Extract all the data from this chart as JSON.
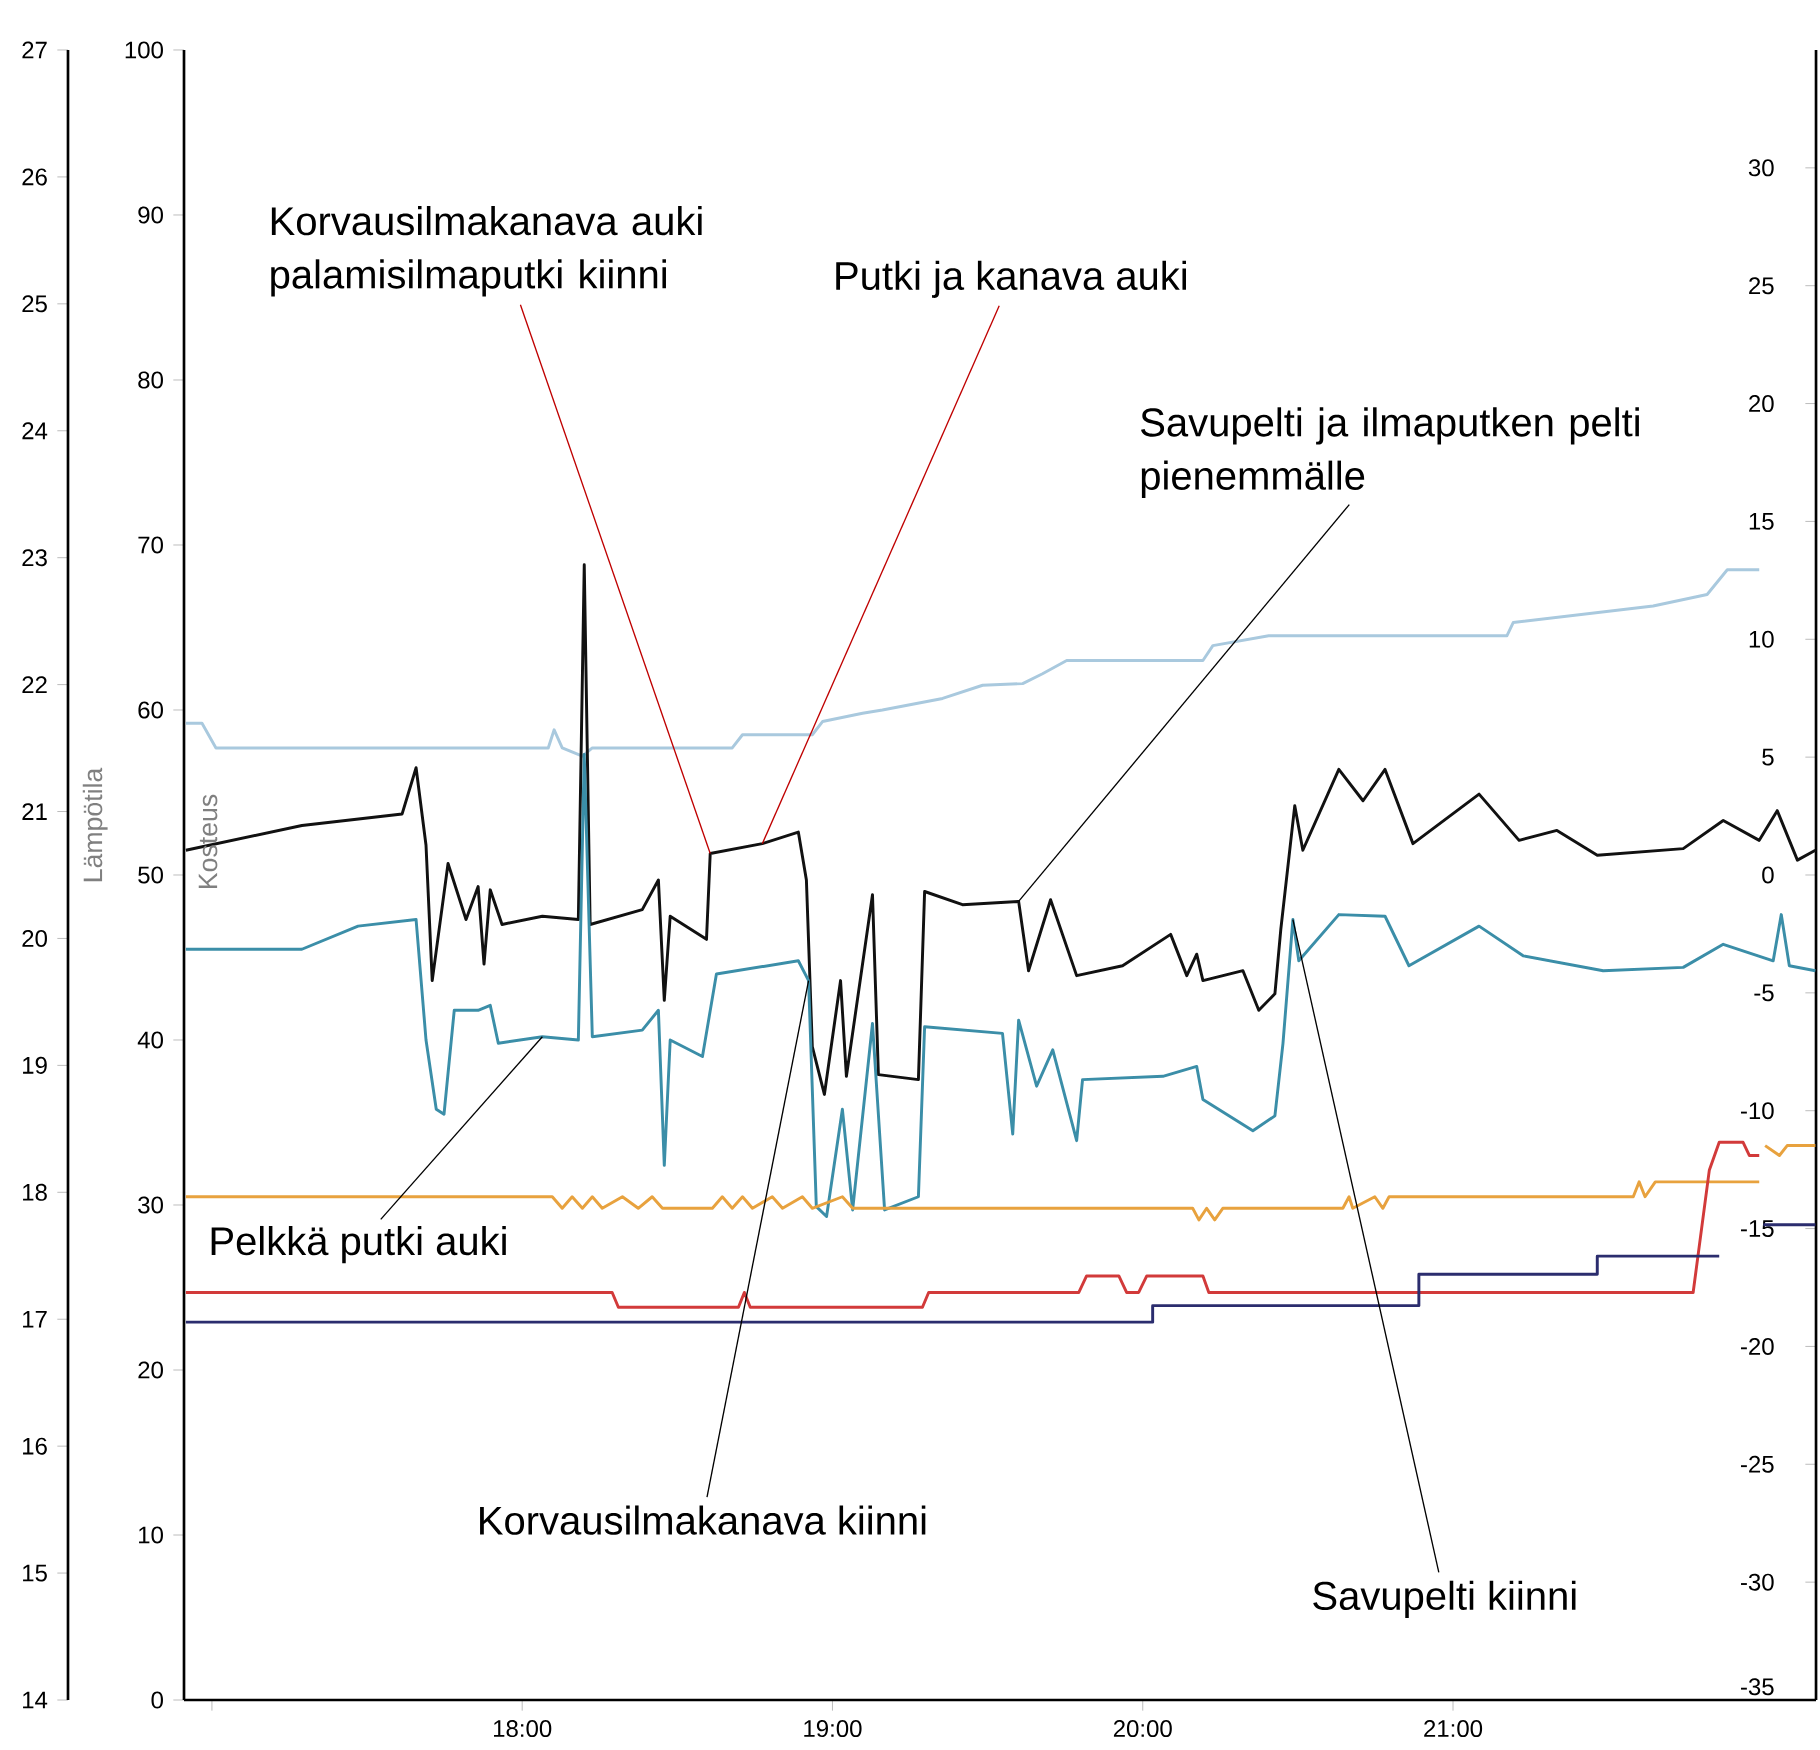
{
  "chart_data": {
    "type": "line",
    "ylabel": "Kosteus",
    "y3label": "Lämpötila",
    "xlim": [
      16.91,
      22.17
    ],
    "xticks": [
      {
        "value": 17,
        "label": null
      },
      {
        "value": 18,
        "label": "18:00"
      },
      {
        "value": 19,
        "label": "19:00"
      },
      {
        "value": 20,
        "label": "20:00"
      },
      {
        "value": 21,
        "label": "21:00"
      }
    ],
    "ylim": [
      0,
      100
    ],
    "yticks": [
      0,
      10,
      20,
      30,
      40,
      50,
      60,
      70,
      80,
      90,
      100
    ],
    "y2lim": [
      -35,
      35
    ],
    "y2ticks": [
      -35,
      -30,
      -25,
      -20,
      -15,
      -10,
      -5,
      0,
      5,
      10,
      15,
      20,
      25,
      30
    ],
    "y3lim": [
      14,
      27
    ],
    "y3ticks": [
      14,
      15,
      16,
      17,
      18,
      19,
      20,
      21,
      22,
      23,
      24,
      25,
      26,
      27
    ],
    "line_style": "solid",
    "series": [
      {
        "color": "#a9c9de",
        "x": [
          16.916,
          16.968,
          17.013,
          18.084,
          18.103,
          18.129,
          18.194,
          18.226,
          18.677,
          18.71,
          18.935,
          18.968,
          19.097,
          19.161,
          19.355,
          19.484,
          19.613,
          19.677,
          19.755,
          20.194,
          20.226,
          20.406,
          21.174,
          21.194,
          21.645,
          21.819,
          21.884,
          21.987
        ],
        "values": [
          59.2,
          59.2,
          57.7,
          57.7,
          58.8,
          57.7,
          57.2,
          57.7,
          57.7,
          58.5,
          58.5,
          59.3,
          59.8,
          60.0,
          60.7,
          61.5,
          61.6,
          62.2,
          63.0,
          63.0,
          63.9,
          64.5,
          64.5,
          65.3,
          66.3,
          67.0,
          68.5,
          68.5
        ]
      },
      {
        "color": "#111111",
        "x": [
          16.916,
          17.29,
          17.613,
          17.658,
          17.69,
          17.71,
          17.761,
          17.819,
          17.858,
          17.877,
          17.897,
          17.935,
          18.065,
          18.181,
          18.2,
          18.219,
          18.387,
          18.439,
          18.458,
          18.477,
          18.594,
          18.606,
          18.774,
          18.89,
          18.916,
          18.935,
          18.974,
          19.026,
          19.045,
          19.129,
          19.148,
          19.277,
          19.297,
          19.419,
          19.6,
          19.632,
          19.703,
          19.787,
          19.935,
          20.09,
          20.142,
          20.174,
          20.194,
          20.323,
          20.374,
          20.426,
          20.445,
          20.49,
          20.516,
          20.632,
          20.71,
          20.781,
          20.871,
          21.084,
          21.213,
          21.335,
          21.465,
          21.742,
          21.871,
          21.987,
          22.045,
          22.11,
          22.168
        ],
        "values": [
          51.5,
          53.0,
          53.7,
          56.5,
          51.8,
          43.6,
          50.7,
          47.3,
          49.3,
          44.6,
          49.1,
          47.0,
          47.5,
          47.3,
          68.8,
          47.0,
          47.9,
          49.7,
          42.4,
          47.5,
          46.1,
          51.3,
          51.9,
          52.6,
          49.7,
          39.6,
          36.7,
          43.6,
          37.8,
          48.8,
          37.9,
          37.6,
          49.0,
          48.2,
          48.4,
          44.2,
          48.5,
          43.9,
          44.5,
          46.4,
          43.9,
          45.2,
          43.6,
          44.2,
          41.8,
          42.8,
          46.7,
          54.2,
          51.5,
          56.4,
          54.5,
          56.4,
          51.9,
          54.9,
          52.1,
          52.7,
          51.2,
          51.6,
          53.3,
          52.1,
          53.9,
          50.9,
          51.5
        ]
      },
      {
        "color": "#3b8ea8",
        "x": [
          16.916,
          17.29,
          17.471,
          17.658,
          17.69,
          17.723,
          17.748,
          17.781,
          17.858,
          17.897,
          17.923,
          18.065,
          18.181,
          18.2,
          18.226,
          18.387,
          18.439,
          18.458,
          18.477,
          18.581,
          18.626,
          18.89,
          18.923,
          18.948,
          18.981,
          19.032,
          19.065,
          19.129,
          19.168,
          19.277,
          19.297,
          19.548,
          19.581,
          19.6,
          19.658,
          19.71,
          19.787,
          19.806,
          20.065,
          20.174,
          20.194,
          20.355,
          20.426,
          20.452,
          20.484,
          20.503,
          20.632,
          20.781,
          20.858,
          21.084,
          21.226,
          21.484,
          21.742,
          21.871,
          22.032,
          22.058,
          22.084,
          22.168
        ],
        "values": [
          45.5,
          45.5,
          46.9,
          47.3,
          40.0,
          35.8,
          35.5,
          41.8,
          41.8,
          42.1,
          39.8,
          40.2,
          40.0,
          57.3,
          40.2,
          40.6,
          41.8,
          32.4,
          40.0,
          39.0,
          44.0,
          44.8,
          43.6,
          29.9,
          29.3,
          35.8,
          29.7,
          41.0,
          29.7,
          30.5,
          40.8,
          40.4,
          34.3,
          41.2,
          37.2,
          39.4,
          33.9,
          37.6,
          37.8,
          38.4,
          36.4,
          34.5,
          35.4,
          39.8,
          47.3,
          44.8,
          47.6,
          47.5,
          44.5,
          46.9,
          45.1,
          44.2,
          44.4,
          45.8,
          44.8,
          47.6,
          44.5,
          44.2
        ]
      },
      {
        "color": "#e8a23e",
        "x": [
          16.916,
          18.097,
          18.129,
          18.161,
          18.194,
          18.226,
          18.258,
          18.323,
          18.374,
          18.419,
          18.452,
          18.613,
          18.645,
          18.677,
          18.71,
          18.742,
          18.806,
          18.839,
          18.903,
          18.935,
          19.032,
          19.065,
          19.31,
          20.161,
          20.181,
          20.206,
          20.232,
          20.258,
          20.645,
          20.665,
          20.677,
          20.748,
          20.774,
          20.794,
          21.581,
          21.6,
          21.619,
          21.652,
          21.987,
          21.99,
          22.006,
          22.052,
          22.077,
          22.168
        ],
        "values": [
          30.5,
          30.5,
          29.8,
          30.5,
          29.8,
          30.5,
          29.8,
          30.5,
          29.8,
          30.5,
          29.8,
          29.8,
          30.5,
          29.8,
          30.5,
          29.8,
          30.5,
          29.8,
          30.5,
          29.8,
          30.5,
          29.8,
          29.8,
          29.8,
          29.1,
          29.8,
          29.1,
          29.8,
          29.8,
          30.5,
          29.8,
          30.5,
          29.8,
          30.5,
          30.5,
          31.4,
          30.5,
          31.4,
          31.4,
          null,
          33.6,
          33.0,
          33.6,
          33.6
        ]
      },
      {
        "color": "#d23a3a",
        "x": [
          16.916,
          18.29,
          18.31,
          18.697,
          18.716,
          18.735,
          19.29,
          19.31,
          19.794,
          19.819,
          19.923,
          19.948,
          19.987,
          20.013,
          20.194,
          20.213,
          21.774,
          21.826,
          21.858,
          21.935,
          21.955,
          21.987
        ],
        "values": [
          24.7,
          24.7,
          23.8,
          23.8,
          24.7,
          23.8,
          23.8,
          24.7,
          24.7,
          25.7,
          25.7,
          24.7,
          24.7,
          25.7,
          25.7,
          24.7,
          24.7,
          32.1,
          33.8,
          33.8,
          33.0,
          33.0
        ]
      },
      {
        "color": "#2b2d6e",
        "x": [
          16.916,
          20.032,
          20.032,
          20.89,
          20.89,
          21.465,
          21.465,
          21.858,
          21.9,
          22.0,
          22.168
        ],
        "values": [
          22.9,
          22.9,
          23.9,
          23.9,
          25.8,
          25.8,
          26.9,
          26.9,
          null,
          28.8,
          28.8
        ]
      }
    ],
    "annotations": [
      {
        "text": "Korvausilmakanava auki palamisilmaputki kiinni",
        "x": 18.606,
        "y": 51.3
      },
      {
        "text": "Putki ja kanava auki",
        "x": 18.774,
        "y": 51.9
      },
      {
        "text": "Savupelti ja ilmaputken pelti pienemmälle",
        "x": 19.6,
        "y": 48.4
      },
      {
        "text": "Pelkkä putki auki",
        "x": 18.065,
        "y": 40.2
      },
      {
        "text": "Korvausilmakanava kiinni",
        "x": 18.923,
        "y": 43.6
      },
      {
        "text": "Savupelti kiinni",
        "x": 20.484,
        "y": 47.3
      }
    ]
  }
}
